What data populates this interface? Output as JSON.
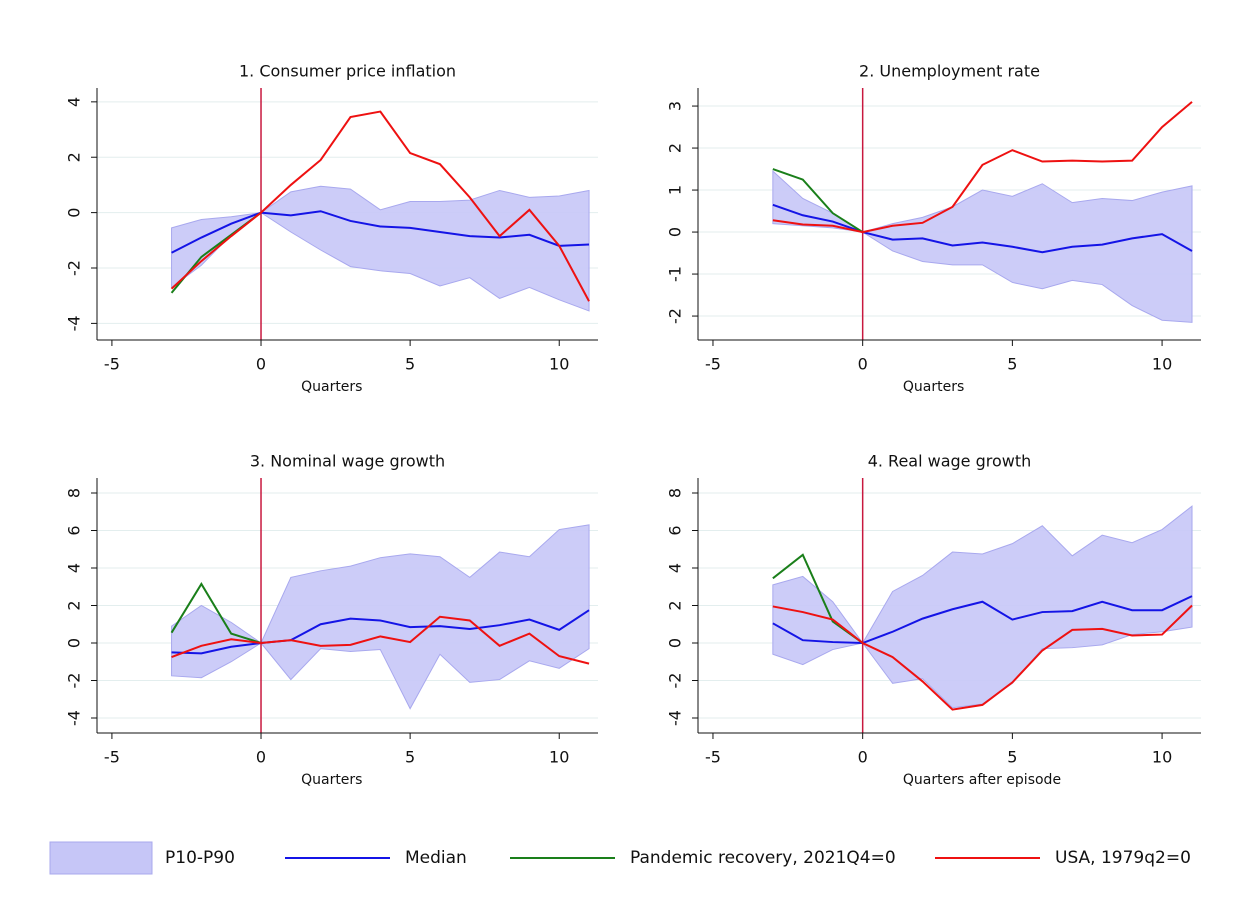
{
  "chart_data": [
    {
      "type": "line",
      "title": "1. Consumer price inflation",
      "xlabel": "Quarters",
      "x": [
        -3,
        -2,
        -1,
        0,
        1,
        2,
        3,
        4,
        5,
        6,
        7,
        8,
        9,
        10,
        11
      ],
      "xlim": [
        -5.5,
        11.3
      ],
      "ylim": [
        -4.6,
        4.5
      ],
      "xticks": [
        -5,
        0,
        5,
        10
      ],
      "yticks": [
        -4,
        -2,
        0,
        2,
        4
      ],
      "vline": 0,
      "grid": true,
      "series": [
        {
          "name": "P10-P90",
          "color": "#c6c6f7",
          "upper": [
            -0.55,
            -0.25,
            -0.15,
            0,
            0.75,
            0.95,
            0.85,
            0.1,
            0.4,
            0.4,
            0.45,
            0.8,
            0.55,
            0.6,
            0.8
          ],
          "lower": [
            -2.7,
            -1.9,
            -0.8,
            0,
            -0.7,
            -1.35,
            -1.95,
            -2.1,
            -2.2,
            -2.65,
            -2.35,
            -3.1,
            -2.7,
            -3.15,
            -3.55
          ]
        },
        {
          "name": "Median",
          "color": "#1414e6",
          "values": [
            -1.45,
            -0.9,
            -0.4,
            0,
            -0.1,
            0.05,
            -0.3,
            -0.5,
            -0.55,
            -0.7,
            -0.85,
            -0.9,
            -0.8,
            -1.2,
            -1.15
          ]
        },
        {
          "name": "Pandemic recovery, 2021Q4=0",
          "color": "#1a7f1a",
          "values": [
            -2.9,
            -1.6,
            -0.8,
            0,
            null,
            null,
            null,
            null,
            null,
            null,
            null,
            null,
            null,
            null,
            null
          ]
        },
        {
          "name": "USA, 1979q2=0",
          "color": "#ee1111",
          "values": [
            -2.75,
            -1.75,
            -0.85,
            0,
            1.0,
            1.9,
            3.45,
            3.65,
            2.15,
            1.75,
            0.55,
            -0.85,
            0.1,
            -1.2,
            -3.2
          ]
        }
      ]
    },
    {
      "type": "line",
      "title": "2. Unemployment rate",
      "xlabel": "Quarters",
      "x": [
        -3,
        -2,
        -1,
        0,
        1,
        2,
        3,
        4,
        5,
        6,
        7,
        8,
        9,
        10,
        11
      ],
      "xlim": [
        -5.5,
        11.3
      ],
      "ylim": [
        -2.57,
        3.43
      ],
      "xticks": [
        -5,
        0,
        5,
        10
      ],
      "yticks": [
        -2,
        -1,
        0,
        1,
        2,
        3
      ],
      "vline": 0,
      "grid": true,
      "series": [
        {
          "color": "#c6c6f7",
          "upper": [
            1.45,
            0.8,
            0.45,
            0,
            0.2,
            0.35,
            0.6,
            1.0,
            0.85,
            1.15,
            0.7,
            0.8,
            0.75,
            0.95,
            1.1
          ],
          "lower": [
            0.2,
            0.15,
            0.1,
            0,
            -0.45,
            -0.7,
            -0.78,
            -0.78,
            -1.2,
            -1.35,
            -1.15,
            -1.25,
            -1.75,
            -2.1,
            -2.15
          ]
        },
        {
          "color": "#1414e6",
          "values": [
            0.65,
            0.4,
            0.25,
            0,
            -0.18,
            -0.15,
            -0.32,
            -0.25,
            -0.35,
            -0.48,
            -0.35,
            -0.3,
            -0.15,
            -0.05,
            -0.45
          ]
        },
        {
          "color": "#1a7f1a",
          "values": [
            1.5,
            1.25,
            0.45,
            0,
            null,
            null,
            null,
            null,
            null,
            null,
            null,
            null,
            null,
            null,
            null
          ]
        },
        {
          "color": "#ee1111",
          "values": [
            0.28,
            0.18,
            0.15,
            0,
            0.15,
            0.22,
            0.6,
            1.6,
            1.95,
            1.68,
            1.7,
            1.68,
            1.7,
            2.5,
            3.1
          ]
        }
      ]
    },
    {
      "type": "line",
      "title": "3. Nominal wage growth",
      "xlabel": "Quarters",
      "x": [
        -3,
        -2,
        -1,
        0,
        1,
        2,
        3,
        4,
        5,
        6,
        7,
        8,
        9,
        10,
        11
      ],
      "xlim": [
        -5.5,
        11.3
      ],
      "ylim": [
        -4.8,
        8.8
      ],
      "xticks": [
        -5,
        0,
        5,
        10
      ],
      "yticks": [
        -4,
        -2,
        0,
        2,
        4,
        6,
        8
      ],
      "vline": 0,
      "grid": true,
      "series": [
        {
          "color": "#c6c6f7",
          "upper": [
            0.9,
            2.0,
            1.1,
            0,
            3.5,
            3.85,
            4.1,
            4.55,
            4.75,
            4.6,
            3.5,
            4.85,
            4.6,
            6.05,
            6.3
          ],
          "lower": [
            -1.75,
            -1.85,
            -1.0,
            0,
            -1.95,
            -0.3,
            -0.45,
            -0.35,
            -3.5,
            -0.6,
            -2.1,
            -1.95,
            -0.95,
            -1.35,
            -0.3
          ]
        },
        {
          "color": "#1414e6",
          "values": [
            -0.5,
            -0.55,
            -0.2,
            0,
            0.15,
            1.0,
            1.3,
            1.2,
            0.85,
            0.9,
            0.75,
            0.95,
            1.25,
            0.7,
            1.75
          ]
        },
        {
          "color": "#1a7f1a",
          "values": [
            0.55,
            3.15,
            0.5,
            0,
            null,
            null,
            null,
            null,
            null,
            null,
            null,
            null,
            null,
            null,
            null
          ]
        },
        {
          "color": "#ee1111",
          "values": [
            -0.75,
            -0.15,
            0.2,
            0,
            0.15,
            -0.15,
            -0.1,
            0.35,
            0.05,
            1.4,
            1.2,
            -0.15,
            0.5,
            -0.7,
            -1.1
          ]
        }
      ]
    },
    {
      "type": "line",
      "title": "4. Real wage growth",
      "xlabel": "Quarters after episode",
      "x": [
        -3,
        -2,
        -1,
        0,
        1,
        2,
        3,
        4,
        5,
        6,
        7,
        8,
        9,
        10,
        11
      ],
      "xlim": [
        -5.5,
        11.3
      ],
      "ylim": [
        -4.8,
        8.8
      ],
      "xticks": [
        -5,
        0,
        5,
        10
      ],
      "yticks": [
        -4,
        -2,
        0,
        2,
        4,
        6,
        8
      ],
      "vline": 0,
      "grid": true,
      "series": [
        {
          "color": "#c6c6f7",
          "upper": [
            3.1,
            3.55,
            2.2,
            0,
            2.75,
            3.6,
            4.85,
            4.75,
            5.3,
            6.25,
            4.65,
            5.75,
            5.35,
            6.05,
            7.3
          ],
          "lower": [
            -0.6,
            -1.15,
            -0.35,
            0,
            -2.15,
            -1.9,
            -3.45,
            -3.25,
            -2.15,
            -0.3,
            -0.25,
            -0.1,
            0.45,
            0.6,
            0.85
          ]
        },
        {
          "color": "#1414e6",
          "values": [
            1.05,
            0.15,
            0.05,
            0,
            0.6,
            1.3,
            1.8,
            2.2,
            1.25,
            1.65,
            1.7,
            2.2,
            1.75,
            1.75,
            2.5
          ]
        },
        {
          "color": "#1a7f1a",
          "values": [
            3.45,
            4.7,
            1.15,
            0,
            null,
            null,
            null,
            null,
            null,
            null,
            null,
            null,
            null,
            null,
            null
          ]
        },
        {
          "color": "#ee1111",
          "values": [
            1.95,
            1.65,
            1.25,
            0,
            -0.75,
            -2.05,
            -3.55,
            -3.3,
            -2.1,
            -0.4,
            0.7,
            0.75,
            0.4,
            0.45,
            2.0
          ]
        }
      ]
    }
  ]
}
